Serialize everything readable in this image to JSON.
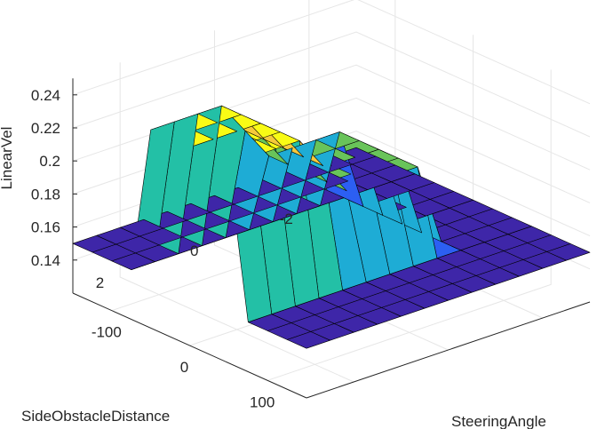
{
  "chart_data": {
    "type": "surface",
    "title": "",
    "xlabel": "SteeringAngle",
    "ylabel": "SideObstacleDistance",
    "zlabel": "LinearVel",
    "x_ticks": [
      "-100",
      "0",
      "100"
    ],
    "y_ticks": [
      "-2",
      "0",
      "2"
    ],
    "z_ticks": [
      "0.14",
      "0.16",
      "0.18",
      "0.2",
      "0.22",
      "0.24"
    ],
    "xlim": [
      -150,
      150
    ],
    "ylim": [
      -3,
      3
    ],
    "zlim": [
      0.12,
      0.25
    ],
    "grid": true,
    "colormap": [
      "#3e26a8",
      "#2c5ff2",
      "#3d8af5",
      "#1eacd5",
      "#23c0a6",
      "#69c45a",
      "#bfb93a",
      "#f6c93b",
      "#f9fb15"
    ],
    "surface": {
      "x": [
        -150,
        -125,
        -100,
        -75,
        -50,
        -25,
        0,
        25,
        50,
        75,
        100,
        125,
        150
      ],
      "y": [
        -3,
        -2.5,
        -2,
        -1.5,
        -1,
        -0.5,
        0,
        0.5,
        1,
        1.5,
        2,
        2.5,
        3
      ],
      "z": [
        [
          0.15,
          0.15,
          0.15,
          0.15,
          0.15,
          0.15,
          0.15,
          0.15,
          0.15,
          0.15,
          0.15,
          0.15,
          0.15
        ],
        [
          0.15,
          0.15,
          0.15,
          0.15,
          0.15,
          0.15,
          0.15,
          0.15,
          0.15,
          0.15,
          0.15,
          0.15,
          0.15
        ],
        [
          0.15,
          0.15,
          0.15,
          0.15,
          0.15,
          0.15,
          0.15,
          0.15,
          0.15,
          0.15,
          0.15,
          0.15,
          0.15
        ],
        [
          0.15,
          0.15,
          0.15,
          0.15,
          0.15,
          0.15,
          0.15,
          0.15,
          0.15,
          0.15,
          0.15,
          0.15,
          0.15
        ],
        [
          0.15,
          0.15,
          0.15,
          0.15,
          0.2,
          0.2,
          0.2,
          0.2,
          0.2,
          0.15,
          0.15,
          0.15,
          0.15
        ],
        [
          0.15,
          0.15,
          0.15,
          0.15,
          0.2,
          0.2,
          0.2,
          0.2,
          0.2,
          0.15,
          0.15,
          0.15,
          0.15
        ],
        [
          0.15,
          0.15,
          0.15,
          0.15,
          0.2,
          0.2,
          0.2,
          0.2,
          0.2,
          0.15,
          0.15,
          0.15,
          0.15
        ],
        [
          0.15,
          0.15,
          0.15,
          0.15,
          0.2,
          0.2,
          0.2,
          0.2,
          0.2,
          0.15,
          0.15,
          0.15,
          0.15
        ],
        [
          0.15,
          0.15,
          0.15,
          0.15,
          0.22,
          0.22,
          0.22,
          0.22,
          0.22,
          0.15,
          0.15,
          0.15,
          0.15
        ],
        [
          0.15,
          0.15,
          0.15,
          0.15,
          0.24,
          0.24,
          0.24,
          0.24,
          0.24,
          0.15,
          0.15,
          0.15,
          0.15
        ],
        [
          0.15,
          0.15,
          0.15,
          0.15,
          0.24,
          0.24,
          0.24,
          0.24,
          0.24,
          0.15,
          0.15,
          0.15,
          0.15
        ],
        [
          0.15,
          0.15,
          0.15,
          0.15,
          0.24,
          0.24,
          0.24,
          0.24,
          0.24,
          0.15,
          0.15,
          0.15,
          0.15
        ],
        [
          0.15,
          0.15,
          0.15,
          0.15,
          0.24,
          0.24,
          0.24,
          0.24,
          0.24,
          0.15,
          0.15,
          0.15,
          0.15
        ]
      ]
    }
  }
}
